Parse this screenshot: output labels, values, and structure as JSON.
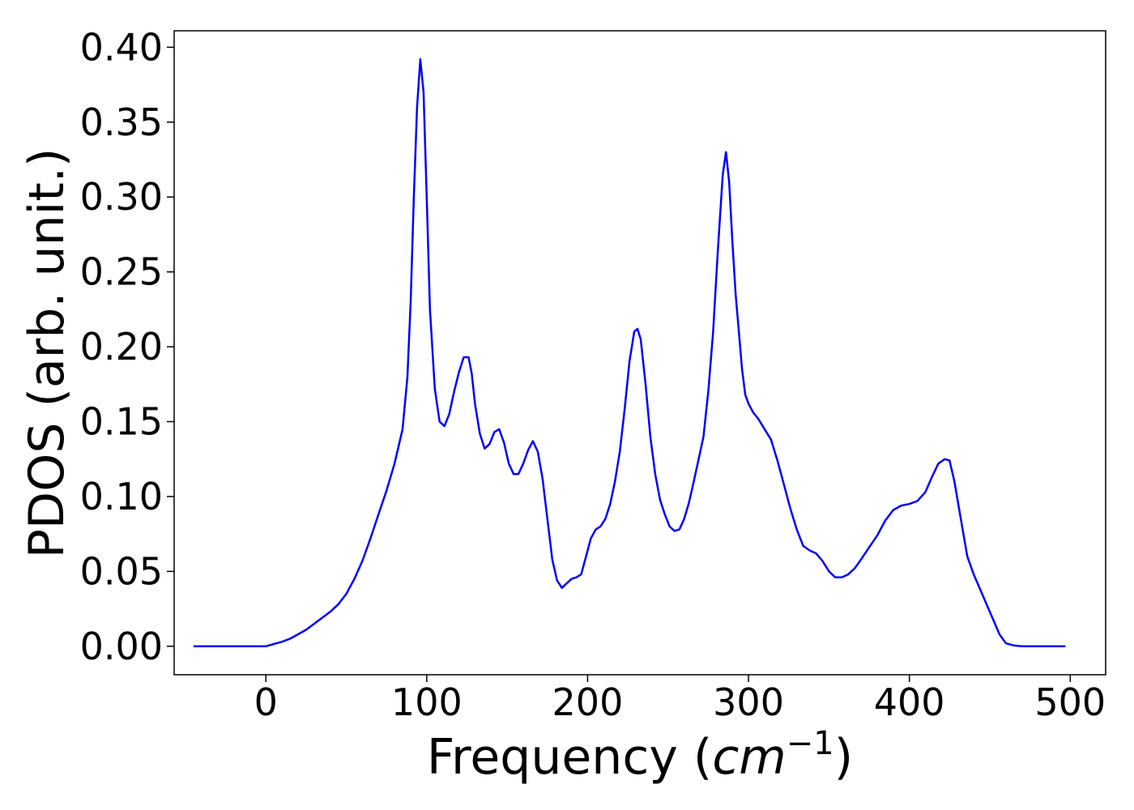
{
  "chart_data": {
    "type": "line",
    "title": "",
    "xlabel_prefix": "Frequency (",
    "xlabel_italic": "cm",
    "xlabel_superscript": "−1",
    "xlabel_suffix": ")",
    "ylabel": "PDOS (arb. unit.)",
    "xlim": [
      -57,
      522
    ],
    "ylim": [
      -0.019,
      0.411
    ],
    "grid": false,
    "legend": "none",
    "xticks": [
      0,
      100,
      200,
      300,
      400,
      500
    ],
    "xtick_labels": [
      "0",
      "100",
      "200",
      "300",
      "400",
      "500"
    ],
    "yticks": [
      0.0,
      0.05,
      0.1,
      0.15,
      0.2,
      0.25,
      0.3,
      0.35,
      0.4
    ],
    "ytick_labels": [
      "0.00",
      "0.05",
      "0.10",
      "0.15",
      "0.20",
      "0.25",
      "0.30",
      "0.35",
      "0.40"
    ],
    "series": [
      {
        "color": "#0000ff",
        "x": [
          -45,
          -30,
          -15,
          0,
          5,
          10,
          15,
          20,
          25,
          30,
          35,
          40,
          45,
          50,
          55,
          60,
          65,
          70,
          75,
          80,
          85,
          88,
          90,
          92,
          94,
          96,
          98,
          100,
          102,
          105,
          108,
          111,
          114,
          117,
          120,
          123,
          126,
          128,
          130,
          133,
          136,
          139,
          142,
          145,
          148,
          151,
          154,
          157,
          160,
          163,
          166,
          169,
          172,
          175,
          178,
          181,
          184,
          187,
          190,
          193,
          196,
          199,
          202,
          205,
          208,
          211,
          214,
          217,
          220,
          223,
          226,
          229,
          231,
          233,
          236,
          239,
          242,
          245,
          248,
          251,
          254,
          257,
          260,
          263,
          266,
          269,
          272,
          275,
          278,
          281,
          284,
          286,
          288,
          290,
          292,
          294,
          296,
          298,
          300,
          303,
          306,
          310,
          314,
          318,
          322,
          326,
          330,
          334,
          338,
          342,
          346,
          350,
          354,
          358,
          362,
          366,
          370,
          375,
          380,
          385,
          390,
          395,
          400,
          405,
          410,
          414,
          418,
          422,
          425,
          428,
          432,
          436,
          440,
          444,
          448,
          452,
          456,
          460,
          465,
          470,
          480,
          490,
          497
        ],
        "y": [
          0.0,
          0.0,
          0.0,
          0.0,
          0.0015,
          0.003,
          0.005,
          0.008,
          0.011,
          0.015,
          0.019,
          0.023,
          0.028,
          0.035,
          0.045,
          0.057,
          0.072,
          0.088,
          0.104,
          0.122,
          0.145,
          0.18,
          0.23,
          0.3,
          0.36,
          0.392,
          0.37,
          0.3,
          0.225,
          0.172,
          0.15,
          0.147,
          0.155,
          0.17,
          0.183,
          0.193,
          0.193,
          0.182,
          0.162,
          0.142,
          0.132,
          0.135,
          0.143,
          0.145,
          0.136,
          0.122,
          0.115,
          0.115,
          0.122,
          0.131,
          0.137,
          0.13,
          0.112,
          0.085,
          0.058,
          0.044,
          0.039,
          0.042,
          0.045,
          0.046,
          0.048,
          0.06,
          0.072,
          0.078,
          0.08,
          0.085,
          0.095,
          0.11,
          0.13,
          0.158,
          0.19,
          0.21,
          0.212,
          0.205,
          0.175,
          0.14,
          0.115,
          0.098,
          0.088,
          0.08,
          0.077,
          0.078,
          0.085,
          0.096,
          0.11,
          0.125,
          0.14,
          0.17,
          0.21,
          0.265,
          0.315,
          0.33,
          0.31,
          0.27,
          0.235,
          0.21,
          0.185,
          0.168,
          0.162,
          0.156,
          0.152,
          0.145,
          0.138,
          0.124,
          0.108,
          0.092,
          0.078,
          0.067,
          0.064,
          0.062,
          0.057,
          0.05,
          0.046,
          0.046,
          0.048,
          0.052,
          0.058,
          0.066,
          0.074,
          0.084,
          0.091,
          0.094,
          0.095,
          0.097,
          0.103,
          0.113,
          0.122,
          0.125,
          0.124,
          0.11,
          0.085,
          0.06,
          0.048,
          0.038,
          0.028,
          0.018,
          0.008,
          0.002,
          0.0005,
          0.0,
          0.0,
          0.0,
          0.0
        ]
      }
    ]
  }
}
